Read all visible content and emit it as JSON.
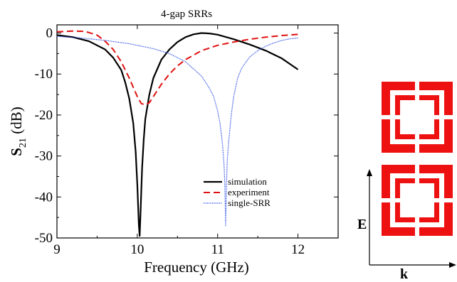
{
  "chart_data": {
    "type": "line",
    "title": "4-gap SRRs",
    "xlabel": "Frequency (GHz)",
    "ylabel": {
      "main": "S",
      "subscript": "21",
      "unit": " (dB)"
    },
    "xlim": [
      9,
      12.5
    ],
    "ylim": [
      -50,
      2
    ],
    "xticks": [
      9,
      10,
      11,
      12
    ],
    "yticks": [
      0,
      -10,
      -20,
      -30,
      -40,
      -50
    ],
    "grid": false,
    "legend_position": "bottom-right",
    "series": [
      {
        "name": "simulation",
        "color": "#000000",
        "style": "solid",
        "x": [
          9.0,
          9.2,
          9.4,
          9.6,
          9.7,
          9.8,
          9.85,
          9.9,
          9.95,
          9.98,
          10.0,
          10.02,
          10.03,
          10.04,
          10.06,
          10.08,
          10.1,
          10.15,
          10.2,
          10.3,
          10.4,
          10.5,
          10.6,
          10.7,
          10.8,
          10.9,
          11.0,
          11.2,
          11.4,
          11.6,
          11.8,
          12.0
        ],
        "y": [
          -0.5,
          -1.0,
          -2.0,
          -4.0,
          -6.0,
          -9.0,
          -12.0,
          -16.0,
          -22.0,
          -29.0,
          -37.0,
          -47.0,
          -49.5,
          -44.0,
          -33.0,
          -26.0,
          -21.0,
          -15.0,
          -11.0,
          -6.5,
          -4.0,
          -2.2,
          -1.0,
          -0.3,
          0.0,
          -0.1,
          -0.4,
          -1.5,
          -2.8,
          -4.3,
          -6.2,
          -8.9
        ]
      },
      {
        "name": "experiment",
        "color": "#e01010",
        "style": "dashed",
        "x": [
          9.0,
          9.2,
          9.35,
          9.5,
          9.6,
          9.7,
          9.8,
          9.9,
          10.0,
          10.05,
          10.1,
          10.15,
          10.2,
          10.3,
          10.4,
          10.5,
          10.6,
          10.8,
          11.0,
          11.2,
          11.4,
          11.6,
          11.8,
          12.0
        ],
        "y": [
          0.3,
          0.5,
          0.4,
          -0.5,
          -2.0,
          -4.0,
          -7.0,
          -11.0,
          -15.5,
          -17.2,
          -17.5,
          -17.0,
          -15.5,
          -12.5,
          -10.0,
          -8.0,
          -6.5,
          -4.3,
          -3.0,
          -2.2,
          -1.5,
          -1.0,
          -0.6,
          -0.3
        ]
      },
      {
        "name": "single-SRR",
        "color": "#1a3fe0",
        "style": "dotted",
        "x": [
          9.0,
          9.3,
          9.6,
          9.9,
          10.2,
          10.4,
          10.6,
          10.8,
          10.9,
          10.95,
          11.0,
          11.03,
          11.06,
          11.08,
          11.09,
          11.1,
          11.11,
          11.12,
          11.14,
          11.17,
          11.2,
          11.25,
          11.3,
          11.4,
          11.5,
          11.6,
          11.7,
          11.8,
          11.9,
          12.0
        ],
        "y": [
          -0.8,
          -1.2,
          -1.8,
          -2.6,
          -3.8,
          -5.0,
          -7.0,
          -10.5,
          -13.5,
          -15.5,
          -19.0,
          -22.0,
          -27.0,
          -32.0,
          -37.0,
          -47.0,
          -37.0,
          -31.0,
          -26.0,
          -20.0,
          -15.5,
          -11.0,
          -8.5,
          -5.8,
          -4.3,
          -3.2,
          -2.4,
          -1.8,
          -1.4,
          -1.2
        ]
      }
    ]
  },
  "diagram": {
    "e_label": "E",
    "k_label": "k",
    "srr_color": "#ee1111"
  }
}
